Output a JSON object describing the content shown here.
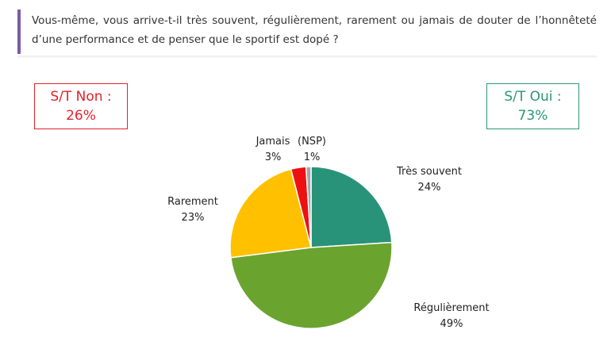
{
  "question": "Vous-même, vous arrive-t-il très souvent, régulièrement, rarement ou jamais de douter de l’honnêteté d’une performance et de penser que le sportif est dopé ?",
  "summary": {
    "non": {
      "label": "S/T Non :",
      "value": "26%"
    },
    "oui": {
      "label": "S/T Oui :",
      "value": "73%"
    }
  },
  "chart_data": {
    "type": "pie",
    "title": "",
    "start_angle_deg": 0,
    "slices": [
      {
        "label": "Très souvent",
        "value": 24,
        "value_label": "24%",
        "color": "#29937a"
      },
      {
        "label": "Régulièrement",
        "value": 49,
        "value_label": "49%",
        "color": "#6aa32e"
      },
      {
        "label": "Rarement",
        "value": 23,
        "value_label": "23%",
        "color": "#ffc000"
      },
      {
        "label": "Jamais",
        "value": 3,
        "value_label": "3%",
        "color": "#ee1111"
      },
      {
        "label": "(NSP)",
        "value": 1,
        "value_label": "1%",
        "color": "#a6a6a6"
      }
    ]
  },
  "colors": {
    "accent_bar": "#7b5aa6",
    "non": "#e2222a",
    "oui": "#2a9775"
  }
}
